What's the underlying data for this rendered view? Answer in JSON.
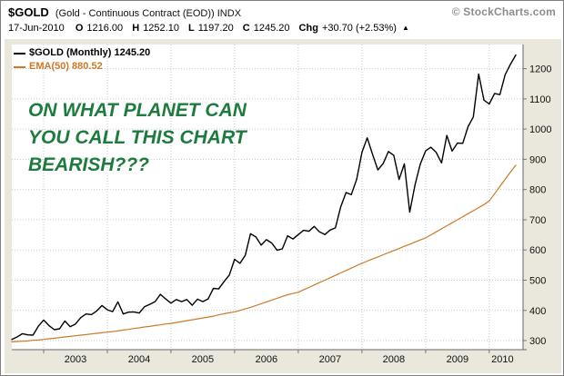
{
  "header": {
    "symbol": "$GOLD",
    "description": "(Gold - Continuous Contract (EOD)) INDX",
    "credit": "© StockCharts.com",
    "date": "17-Jun-2010",
    "quote": [
      {
        "label": "O",
        "value": "1216.00"
      },
      {
        "label": "H",
        "value": "1252.10"
      },
      {
        "label": "L",
        "value": "1197.20"
      },
      {
        "label": "C",
        "value": "1245.20"
      },
      {
        "label": "Chg",
        "value": "+30.70 (+2.53%)"
      }
    ],
    "change_arrow": "▲"
  },
  "legend": {
    "price_label": "$GOLD (Monthly) 1245.20",
    "ema_label": "EMA(50) 880.52",
    "price_color": "#000000",
    "ema_color": "#cc7a29"
  },
  "annotation": {
    "lines": [
      "ON WHAT PLANET CAN",
      "YOU CALL THIS CHART",
      "BEARISH???"
    ],
    "color": "#1e7b3e"
  },
  "chart_data": {
    "type": "line",
    "title": "$GOLD (Gold - Continuous Contract (EOD)) INDX - Monthly with EMA(50)",
    "x_unit": "month",
    "x_start_year": 2002,
    "x_start_month": 7,
    "x_end_label": "Jun-2010",
    "year_ticks": [
      2003,
      2004,
      2005,
      2006,
      2007,
      2008,
      2009,
      2010
    ],
    "y_ticks": [
      300,
      400,
      500,
      600,
      700,
      800,
      900,
      1000,
      1100,
      1200
    ],
    "ylim": [
      270,
      1280
    ],
    "grid": true,
    "legend_position": "top-left",
    "series": [
      {
        "name": "$GOLD (Monthly)",
        "color": "#000000",
        "last_value": 1245.2,
        "values": [
          304,
          312,
          323,
          319,
          318,
          348,
          368,
          350,
          336,
          339,
          365,
          346,
          355,
          376,
          388,
          386,
          398,
          416,
          402,
          396,
          428,
          388,
          394,
          395,
          391,
          412,
          420,
          429,
          453,
          438,
          424,
          436,
          429,
          436,
          417,
          437,
          429,
          438,
          473,
          471,
          495,
          517,
          569,
          556,
          582,
          654,
          643,
          616,
          634,
          623,
          599,
          604,
          647,
          636,
          651,
          665,
          662,
          678,
          660,
          651,
          666,
          673,
          743,
          790,
          783,
          834,
          923,
          971,
          917,
          865,
          886,
          926,
          913,
          833,
          885,
          725,
          815,
          884,
          928,
          940,
          923,
          888,
          979,
          927,
          954,
          953,
          1008,
          1040,
          1182,
          1096,
          1083,
          1118,
          1114,
          1180,
          1215,
          1245.2
        ]
      },
      {
        "name": "EMA(50)",
        "color": "#cc7a29",
        "last_value": 880.52,
        "values": [
          296,
          297,
          298,
          299,
          301,
          302,
          304,
          306,
          308,
          310,
          312,
          314,
          316,
          318,
          320,
          322,
          324,
          326,
          328,
          330,
          332,
          335,
          337,
          340,
          342,
          345,
          347,
          350,
          352,
          355,
          357,
          360,
          363,
          366,
          369,
          372,
          375,
          378,
          381,
          385,
          389,
          392,
          395,
          400,
          405,
          410,
          416,
          422,
          428,
          434,
          440,
          446,
          452,
          456,
          460,
          468,
          476,
          484,
          492,
          500,
          508,
          516,
          524,
          532,
          540,
          548,
          556,
          563,
          570,
          577,
          584,
          591,
          598,
          605,
          612,
          619,
          626,
          633,
          640,
          650,
          660,
          670,
          680,
          690,
          700,
          710,
          720,
          730,
          740,
          750,
          762,
          786,
          810,
          834,
          858,
          880.52
        ]
      }
    ]
  }
}
